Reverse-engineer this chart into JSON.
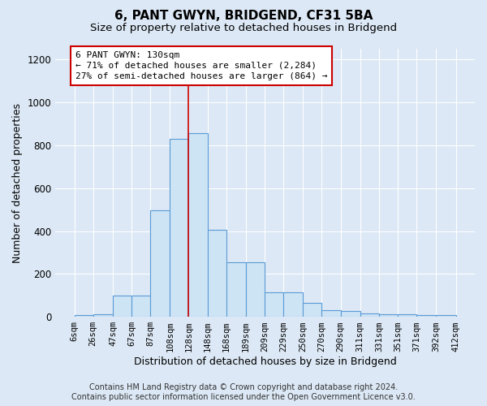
{
  "title": "6, PANT GWYN, BRIDGEND, CF31 5BA",
  "subtitle": "Size of property relative to detached houses in Bridgend",
  "xlabel": "Distribution of detached houses by size in Bridgend",
  "ylabel": "Number of detached properties",
  "bar_left_edges": [
    6,
    26,
    47,
    67,
    87,
    108,
    128,
    148,
    168,
    189,
    209,
    229,
    250,
    270,
    290,
    311,
    331,
    351,
    371,
    392
  ],
  "bar_heights": [
    8,
    12,
    100,
    100,
    495,
    830,
    855,
    405,
    255,
    255,
    115,
    115,
    65,
    32,
    28,
    14,
    12,
    12,
    8,
    8
  ],
  "bar_color": "#cde4f5",
  "bar_edge_color": "#5b9bd5",
  "property_line_x": 128,
  "property_line_color": "#cc0000",
  "annotation_line1": "6 PANT GWYN: 130sqm",
  "annotation_line2": "← 71% of detached houses are smaller (2,284)",
  "annotation_line3": "27% of semi-detached houses are larger (864) →",
  "annotation_box_color": "#ffffff",
  "annotation_box_edge_color": "#cc0000",
  "ylim": [
    0,
    1250
  ],
  "yticks": [
    0,
    200,
    400,
    600,
    800,
    1000,
    1200
  ],
  "tick_labels": [
    "6sqm",
    "26sqm",
    "47sqm",
    "67sqm",
    "87sqm",
    "108sqm",
    "128sqm",
    "148sqm",
    "168sqm",
    "189sqm",
    "209sqm",
    "229sqm",
    "250sqm",
    "270sqm",
    "290sqm",
    "311sqm",
    "331sqm",
    "351sqm",
    "371sqm",
    "392sqm",
    "412sqm"
  ],
  "background_color": "#dce8f5",
  "plot_bg_color": "#dce8f5",
  "footer_line1": "Contains HM Land Registry data © Crown copyright and database right 2024.",
  "footer_line2": "Contains public sector information licensed under the Open Government Licence v3.0.",
  "title_fontsize": 11,
  "subtitle_fontsize": 9.5,
  "axis_label_fontsize": 9,
  "tick_fontsize": 7.5,
  "footer_fontsize": 7
}
